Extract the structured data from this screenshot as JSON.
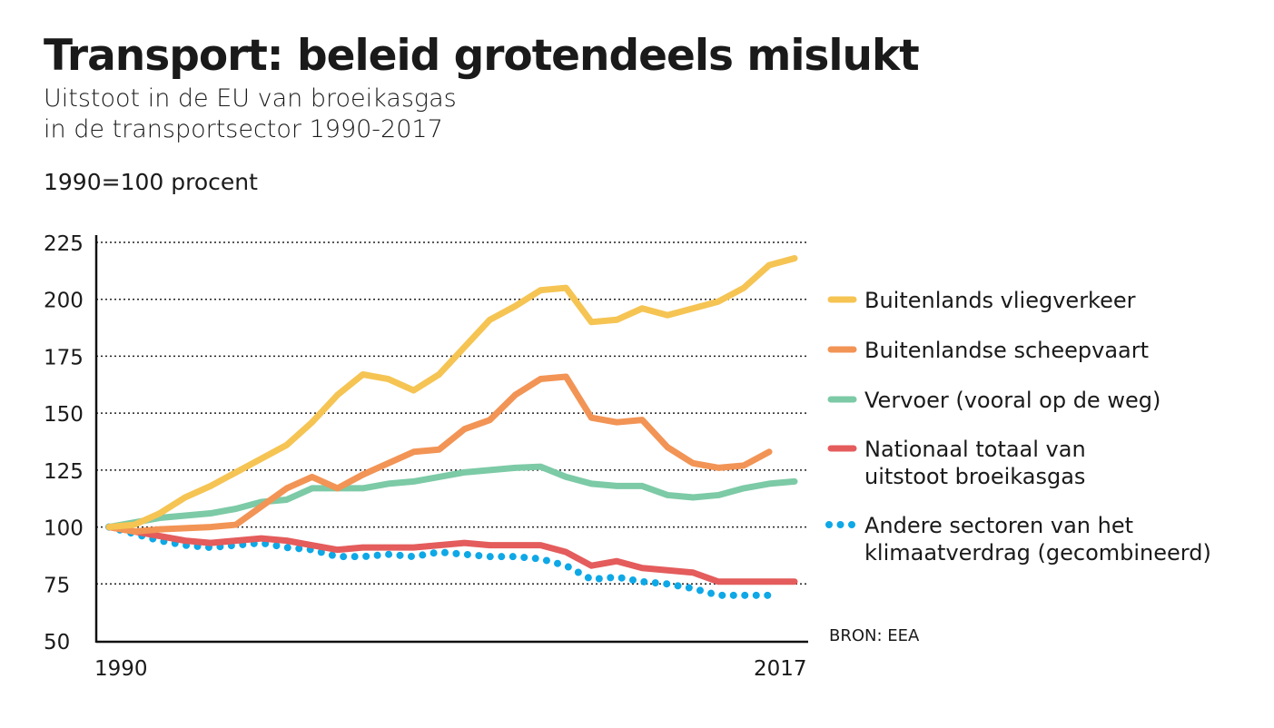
{
  "title": "Transport: beleid grotendeels mislukt",
  "subtitle_lines": [
    "Uitstoot in de EU van broeikasgas",
    "in de transportsector 1990-2017"
  ],
  "unit_label": "1990=100 procent",
  "source": "BRON: EEA",
  "chart_data": {
    "type": "line",
    "title": "Transport: beleid grotendeels mislukt",
    "ylabel": "1990=100 procent",
    "ylim": [
      50,
      225
    ],
    "yticks": [
      50,
      75,
      100,
      125,
      150,
      175,
      200,
      225
    ],
    "xlim": [
      1990,
      2017
    ],
    "xtick_labels": [
      "1990",
      "2017"
    ],
    "grid": "horizontal dotted",
    "legend_placement": "right",
    "series": [
      {
        "name": "Buitenlands vliegverkeer",
        "color": "#f5c453",
        "style": "solid",
        "start": 1990,
        "values": [
          100,
          101,
          106,
          113,
          118,
          124,
          130,
          136,
          146,
          158,
          167,
          165,
          160,
          167,
          179,
          191,
          197,
          204,
          205,
          190,
          191,
          196,
          193,
          196,
          199,
          205,
          215,
          218
        ]
      },
      {
        "name": "Buitenlandse scheepvaart",
        "color": "#f29455",
        "style": "solid",
        "start": 1990,
        "values": [
          100,
          98,
          99,
          99.5,
          100,
          101,
          109,
          117,
          122,
          117,
          123,
          128,
          133,
          134,
          143,
          147,
          158,
          165,
          166,
          148,
          146,
          147,
          135,
          128,
          126,
          127,
          133
        ]
      },
      {
        "name": "Vervoer (vooral op de weg)",
        "color": "#7ccaa6",
        "style": "solid",
        "start": 1990,
        "values": [
          100,
          102,
          104,
          105,
          106,
          108,
          111,
          112,
          117,
          117,
          117,
          119,
          120,
          122,
          124,
          125,
          126,
          126.5,
          122,
          119,
          118,
          118,
          114,
          113,
          114,
          117,
          119,
          120
        ]
      },
      {
        "name": "Nationaal totaal van uitstoot broeikasgas",
        "color": "#e45c5c",
        "style": "solid",
        "start": 1990,
        "values": [
          100,
          98,
          96,
          94,
          93,
          94,
          95,
          94,
          92,
          90,
          91,
          91,
          91,
          92,
          93,
          92,
          92,
          92,
          89,
          83,
          85,
          82,
          81,
          80,
          76,
          76,
          76,
          76
        ]
      },
      {
        "name": "Andere sectoren van het klimaatverdrag (gecombineerd)",
        "color": "#0ea8e6",
        "style": "dotted",
        "start": 1990,
        "values": [
          100,
          97,
          94,
          92,
          91,
          92,
          93,
          91,
          90,
          87,
          87,
          88,
          87,
          89,
          88,
          87,
          87,
          86,
          83,
          77,
          78,
          76,
          75,
          73,
          70,
          70,
          70
        ]
      }
    ]
  }
}
